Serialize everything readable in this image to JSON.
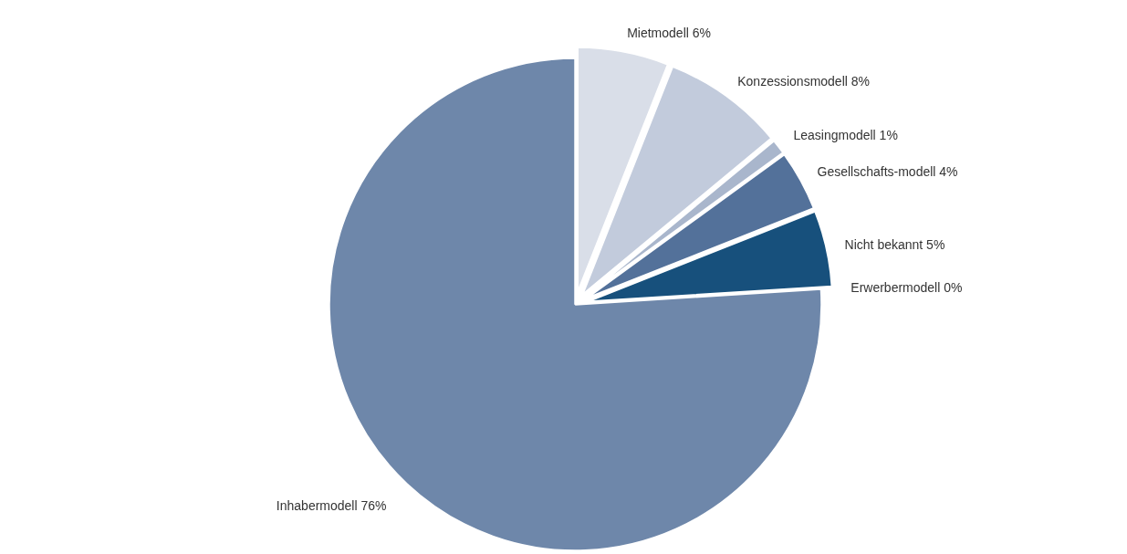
{
  "chart_data": {
    "type": "pie",
    "categories": [
      "Mietmodell",
      "Konzessionsmodell",
      "Leasingmodell",
      "Gesellschafts-modell",
      "Nicht bekannt",
      "Erwerbermodell",
      "Inhabermodell"
    ],
    "values": [
      6,
      8,
      1,
      4,
      5,
      0,
      76
    ],
    "colors": [
      "#d9dee8",
      "#c2cbdc",
      "#a9b6cc",
      "#53719a",
      "#17507c",
      "#1f3f60",
      "#6e87aa"
    ],
    "value_labels": [
      "6%",
      "8%",
      "1%",
      "4%",
      "5%",
      "0%",
      "76%"
    ]
  }
}
